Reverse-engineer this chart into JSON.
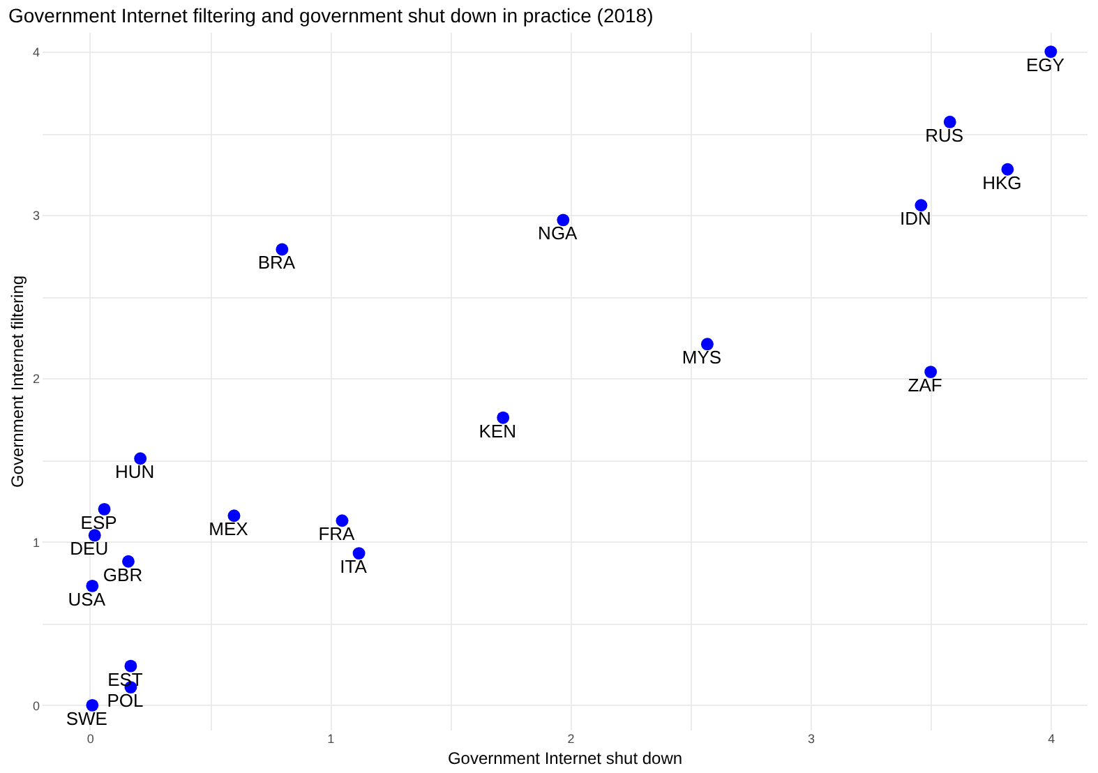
{
  "chart_data": {
    "type": "scatter",
    "title": "Government Internet filtering and government shut down in practice (2018)",
    "xlabel": "Government Internet shut down",
    "ylabel": "Government Internet filtering",
    "x": [
      4.0,
      3.58,
      3.82,
      3.46,
      1.97,
      0.8,
      2.57,
      3.5,
      1.72,
      0.21,
      0.06,
      0.6,
      1.05,
      0.02,
      1.12,
      0.16,
      0.01,
      0.17,
      0.17,
      0.01
    ],
    "series": [
      {
        "color": "#0000ff",
        "values": [
          4.0,
          3.57,
          3.28,
          3.06,
          2.97,
          2.79,
          2.21,
          2.04,
          1.76,
          1.51,
          1.2,
          1.16,
          1.13,
          1.04,
          0.93,
          0.88,
          0.73,
          0.24,
          0.11,
          0.0
        ]
      }
    ],
    "annotations": [
      {
        "text": "EGY",
        "x": 4.0,
        "y": 4.0
      },
      {
        "text": "RUS",
        "x": 3.58,
        "y": 3.57
      },
      {
        "text": "HKG",
        "x": 3.82,
        "y": 3.28
      },
      {
        "text": "IDN",
        "x": 3.46,
        "y": 3.06
      },
      {
        "text": "NGA",
        "x": 1.97,
        "y": 2.97
      },
      {
        "text": "BRA",
        "x": 0.8,
        "y": 2.79
      },
      {
        "text": "MYS",
        "x": 2.57,
        "y": 2.21
      },
      {
        "text": "ZAF",
        "x": 3.5,
        "y": 2.04
      },
      {
        "text": "KEN",
        "x": 1.72,
        "y": 1.76
      },
      {
        "text": "HUN",
        "x": 0.21,
        "y": 1.51
      },
      {
        "text": "ESP",
        "x": 0.06,
        "y": 1.2
      },
      {
        "text": "MEX",
        "x": 0.6,
        "y": 1.16
      },
      {
        "text": "FRA",
        "x": 1.05,
        "y": 1.13
      },
      {
        "text": "DEU",
        "x": 0.02,
        "y": 1.04
      },
      {
        "text": "ITA",
        "x": 1.12,
        "y": 0.93
      },
      {
        "text": "GBR",
        "x": 0.16,
        "y": 0.88
      },
      {
        "text": "USA",
        "x": 0.01,
        "y": 0.73
      },
      {
        "text": "EST",
        "x": 0.17,
        "y": 0.24
      },
      {
        "text": "POL",
        "x": 0.17,
        "y": 0.11
      },
      {
        "text": "SWE",
        "x": 0.01,
        "y": 0.0
      }
    ],
    "xlim": [
      -0.2,
      4.15
    ],
    "ylim": [
      -0.15,
      4.12
    ],
    "xticks": [
      0,
      {
        "value": 0.5,
        "label": null
      },
      1,
      {
        "value": 1.5,
        "label": null
      },
      2,
      {
        "value": 2.5,
        "label": null
      },
      3,
      {
        "value": 3.5,
        "label": null
      },
      4
    ],
    "yticks": [
      0,
      {
        "value": 0.5,
        "label": null
      },
      1,
      {
        "value": 1.5,
        "label": null
      },
      2,
      {
        "value": 2.5,
        "label": null
      },
      3,
      {
        "value": 3.5,
        "label": null
      },
      4
    ],
    "grid": true,
    "marker": "circle"
  }
}
